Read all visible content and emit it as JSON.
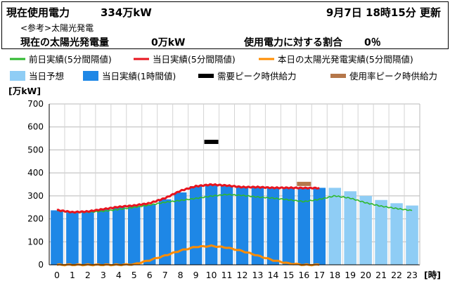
{
  "header": {
    "current_label": "現在使用電力",
    "current_value": "334万kW",
    "update_time": "9月7日 18時15分 更新",
    "ref_note": "<参考>太陽光発電",
    "solar_label": "現在の太陽光発電量",
    "solar_value": "0万kW",
    "ratio_label": "使用電力に対する割合",
    "ratio_value": "0％"
  },
  "legend": [
    {
      "label": "前日実績(5分間隔値)",
      "color": "#2eb82e",
      "kind": "line"
    },
    {
      "label": "当日実績(5分間隔値)",
      "color": "#e8141e",
      "kind": "line"
    },
    {
      "label": "本日の太陽光発電実績(5分間隔値)",
      "color": "#ff8c00",
      "kind": "line"
    },
    {
      "label": "当日予想",
      "color": "#8fcdf5",
      "kind": "box"
    },
    {
      "label": "当日実績(1時間値)",
      "color": "#1e87e6",
      "kind": "box"
    },
    {
      "label": "需要ピーク時供給力",
      "color": "#000000",
      "kind": "dash"
    },
    {
      "label": "使用率ピーク時供給力",
      "color": "#b5774a",
      "kind": "dash"
    }
  ],
  "chart_data": {
    "type": "bar",
    "y_unit_label": "[万kW]",
    "x_unit_label": "[時]",
    "ylim": [
      0,
      700
    ],
    "yticks": [
      0,
      100,
      200,
      300,
      400,
      500,
      600,
      700
    ],
    "grid": true,
    "categories": [
      "0",
      "1",
      "2",
      "3",
      "4",
      "5",
      "6",
      "7",
      "8",
      "9",
      "10",
      "11",
      "12",
      "13",
      "14",
      "15",
      "16",
      "17",
      "18",
      "19",
      "20",
      "21",
      "22",
      "23"
    ],
    "actual_hourly": [
      237,
      228,
      232,
      242,
      252,
      255,
      262,
      285,
      315,
      342,
      350,
      345,
      340,
      340,
      336,
      338,
      338,
      335,
      null,
      null,
      null,
      null,
      null,
      null
    ],
    "forecast": [
      null,
      null,
      null,
      null,
      null,
      null,
      null,
      null,
      null,
      null,
      null,
      null,
      null,
      null,
      null,
      null,
      null,
      null,
      335,
      320,
      300,
      282,
      268,
      258
    ],
    "prev_day": [
      235,
      227,
      229,
      233,
      241,
      250,
      260,
      272,
      280,
      289,
      299,
      306,
      302,
      295,
      290,
      283,
      275,
      285,
      300,
      290,
      270,
      255,
      245,
      236
    ],
    "today_5min": [
      238,
      229,
      232,
      242,
      252,
      258,
      268,
      290,
      322,
      342,
      349,
      345,
      338,
      338,
      335,
      335,
      334,
      334
    ],
    "solar": [
      0,
      0,
      0,
      0,
      0,
      2,
      20,
      40,
      62,
      78,
      82,
      75,
      60,
      40,
      20,
      6,
      0,
      0
    ],
    "demand_peak_supply": {
      "hour": 10,
      "value": 535
    },
    "usage_peak_supply": {
      "hour": 16,
      "value": 352
    }
  }
}
